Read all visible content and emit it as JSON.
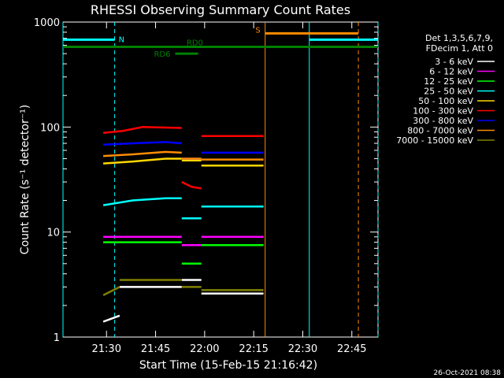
{
  "chart_data": {
    "type": "line",
    "title": "RHESSI Observing Summary Count Rates",
    "xlabel": "Start Time (15-Feb-15 21:16:42)",
    "ylabel": "Count Rate (s⁻¹ detector⁻¹)",
    "yscale": "log",
    "ylim": [
      1,
      1000
    ],
    "xlim": [
      "21:16:42",
      "22:53:00"
    ],
    "x_ticks": [
      "21:30",
      "21:45",
      "22:00",
      "22:15",
      "22:30",
      "22:45"
    ],
    "y_ticks": [
      "1",
      "10",
      "100",
      "1000"
    ],
    "legend_position": "right",
    "legend_header": [
      "Det 1,3,5,6,7,9,",
      "FDecim 1, Att 0"
    ],
    "series": [
      {
        "name": "3 - 6 keV",
        "color": "#ffffff",
        "segments": [
          {
            "x": [
              "21:29:00",
              "21:34:00"
            ],
            "y": [
              1.4,
              1.6
            ]
          },
          {
            "x": [
              "21:34:00",
              "21:53:00"
            ],
            "y": [
              3.0,
              3.0
            ]
          },
          {
            "x": [
              "21:53:00",
              "21:59:00"
            ],
            "y": [
              3.5,
              3.5
            ]
          },
          {
            "x": [
              "21:59:00",
              "22:18:00"
            ],
            "y": [
              2.6,
              2.6
            ]
          }
        ]
      },
      {
        "name": "6 - 12 keV",
        "color": "#ff00ff",
        "segments": [
          {
            "x": [
              "21:29:00",
              "21:53:00"
            ],
            "y": [
              9.0,
              9.0
            ]
          },
          {
            "x": [
              "21:53:00",
              "21:59:00"
            ],
            "y": [
              7.5,
              7.5
            ]
          },
          {
            "x": [
              "21:59:00",
              "22:18:00"
            ],
            "y": [
              9.0,
              9.0
            ]
          }
        ]
      },
      {
        "name": "12 - 25 keV",
        "color": "#00ff00",
        "segments": [
          {
            "x": [
              "21:29:00",
              "21:53:00"
            ],
            "y": [
              8.0,
              8.0
            ]
          },
          {
            "x": [
              "21:53:00",
              "21:59:00"
            ],
            "y": [
              5.0,
              5.0
            ]
          },
          {
            "x": [
              "21:59:00",
              "22:18:00"
            ],
            "y": [
              7.5,
              7.5
            ]
          }
        ]
      },
      {
        "name": "25 - 50 keV",
        "color": "#00ffff",
        "segments": [
          {
            "x": [
              "21:29:00",
              "21:38:00",
              "21:48:00",
              "21:53:00"
            ],
            "y": [
              18,
              20,
              21,
              21
            ]
          },
          {
            "x": [
              "21:53:00",
              "21:59:00"
            ],
            "y": [
              13.5,
              13.5
            ]
          },
          {
            "x": [
              "21:59:00",
              "22:18:00"
            ],
            "y": [
              17.5,
              17.5
            ]
          }
        ]
      },
      {
        "name": "50 - 100 keV",
        "color": "#ffd700",
        "segments": [
          {
            "x": [
              "21:29:00",
              "21:38:00",
              "21:48:00",
              "21:53:00"
            ],
            "y": [
              45,
              47,
              50,
              50
            ]
          },
          {
            "x": [
              "21:53:00",
              "21:59:00"
            ],
            "y": [
              48,
              48
            ]
          },
          {
            "x": [
              "21:59:00",
              "22:18:00"
            ],
            "y": [
              43,
              43
            ]
          }
        ]
      },
      {
        "name": "100 - 300 keV",
        "color": "#ff0000",
        "segments": [
          {
            "x": [
              "21:29:00",
              "21:35:00",
              "21:41:00",
              "21:53:00"
            ],
            "y": [
              88,
              92,
              100,
              98
            ]
          },
          {
            "x": [
              "21:53:00",
              "21:56:00",
              "21:59:00"
            ],
            "y": [
              30,
              27,
              26
            ]
          },
          {
            "x": [
              "21:59:00",
              "22:18:00"
            ],
            "y": [
              82,
              82
            ]
          }
        ]
      },
      {
        "name": "300 - 800 keV",
        "color": "#0000ff",
        "segments": [
          {
            "x": [
              "21:29:00",
              "21:38:00",
              "21:48:00",
              "21:53:00"
            ],
            "y": [
              68,
              70,
              72,
              70
            ]
          },
          {
            "x": [
              "21:53:00",
              "21:59:00"
            ],
            "y": [
              50,
              50
            ]
          },
          {
            "x": [
              "21:59:00",
              "22:18:00"
            ],
            "y": [
              57,
              57
            ]
          }
        ]
      },
      {
        "name": "800 - 7000 keV",
        "color": "#ff8c00",
        "segments": [
          {
            "x": [
              "21:29:00",
              "21:38:00",
              "21:48:00",
              "21:53:00"
            ],
            "y": [
              53,
              55,
              58,
              57
            ]
          },
          {
            "x": [
              "21:53:00",
              "21:59:00"
            ],
            "y": [
              50,
              50
            ]
          },
          {
            "x": [
              "21:59:00",
              "22:18:00"
            ],
            "y": [
              49,
              49
            ]
          }
        ]
      },
      {
        "name": "7000 - 15000 keV",
        "color": "#808000",
        "segments": [
          {
            "x": [
              "21:29:00",
              "21:34:00"
            ],
            "y": [
              2.5,
              3.0
            ]
          },
          {
            "x": [
              "21:34:00",
              "21:53:00"
            ],
            "y": [
              3.5,
              3.5
            ]
          },
          {
            "x": [
              "21:53:00",
              "21:59:00"
            ],
            "y": [
              3.0,
              3.0
            ]
          },
          {
            "x": [
              "21:59:00",
              "22:18:00"
            ],
            "y": [
              2.8,
              2.8
            ]
          }
        ]
      }
    ],
    "vertical_lines": [
      {
        "x": "21:16:42",
        "color": "#00ffff",
        "style": "solid"
      },
      {
        "x": "21:32:30",
        "color": "#00ffff",
        "style": "dashed"
      },
      {
        "x": "22:18:30",
        "color": "#ff8c00",
        "style": "solid"
      },
      {
        "x": "22:32:00",
        "color": "#00ffff",
        "style": "solid"
      },
      {
        "x": "22:47:00",
        "color": "#ff8c00",
        "style": "dashed"
      },
      {
        "x": "22:53:00",
        "color": "#00ffff",
        "style": "dashed"
      }
    ],
    "flag_bars": [
      {
        "label": "N",
        "color": "#00ffff",
        "x": [
          "21:16:42",
          "21:32:30"
        ],
        "y": 680
      },
      {
        "label": "S",
        "color": "#ff8c00",
        "x": [
          "22:18:30",
          "22:47:00"
        ],
        "y": 780
      },
      {
        "label": "",
        "color": "#00ffff",
        "x": [
          "22:32:00",
          "22:53:00"
        ],
        "y": 680
      },
      {
        "label": "RD0",
        "color": "#008000",
        "x": [
          "21:16:42",
          "22:53:00"
        ],
        "y": 580
      },
      {
        "label": "RD6",
        "color": "#008000",
        "x": [
          "21:51:00",
          "21:58:00"
        ],
        "y": 500
      }
    ],
    "footer_date": "26-Oct-2021 08:38"
  }
}
